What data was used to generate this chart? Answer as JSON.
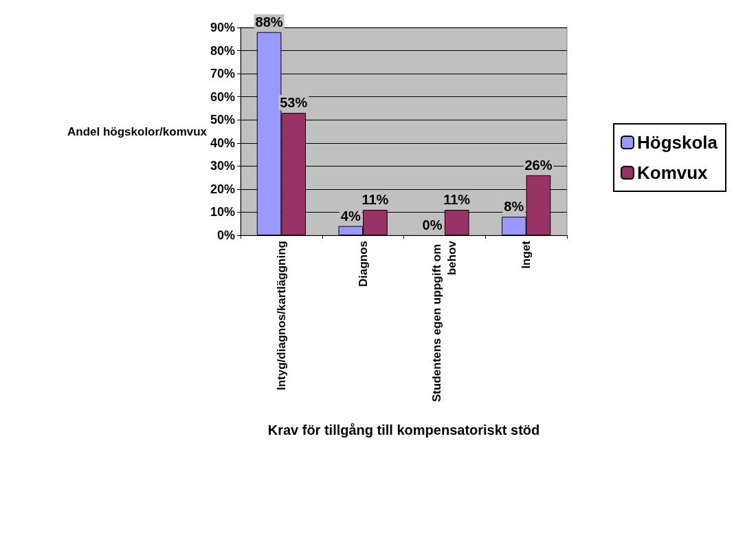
{
  "chart_data": {
    "type": "bar",
    "xlabel": "Krav för tillgång till kompensatoriskt stöd",
    "ylabel": "Andel högskolor/komvux",
    "categories": [
      "Intyg/diagnos/kartläggning",
      "Diagnos",
      "Studentens egen uppgift om behov",
      "Inget"
    ],
    "series": [
      {
        "name": "Högskola",
        "color": "#9999ff",
        "values": [
          88,
          4,
          0,
          8
        ],
        "value_labels": [
          "88%",
          "4%",
          "0%",
          "8%"
        ]
      },
      {
        "name": "Komvux",
        "color": "#993366",
        "values": [
          53,
          11,
          11,
          26
        ],
        "value_labels": [
          "53%",
          "11%",
          "11%",
          "26%"
        ]
      }
    ],
    "ylim": [
      0,
      90
    ],
    "yticks": [
      {
        "value": 0,
        "label": "0%"
      },
      {
        "value": 10,
        "label": "10%"
      },
      {
        "value": 20,
        "label": "20%"
      },
      {
        "value": 30,
        "label": "30%"
      },
      {
        "value": 40,
        "label": "40%"
      },
      {
        "value": 50,
        "label": "50%"
      },
      {
        "value": 60,
        "label": "60%"
      },
      {
        "value": 70,
        "label": "70%"
      },
      {
        "value": 80,
        "label": "80%"
      },
      {
        "value": 90,
        "label": "90%"
      }
    ],
    "grid": "y",
    "legend": "right"
  }
}
